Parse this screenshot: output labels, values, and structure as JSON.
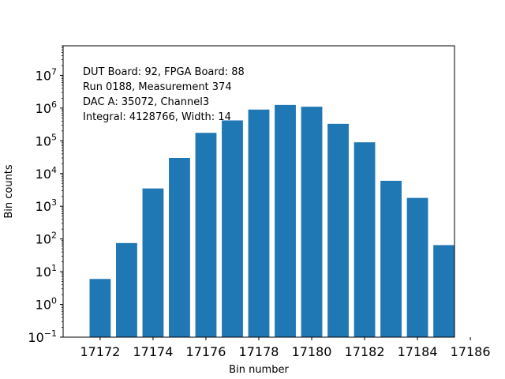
{
  "chart_data": {
    "type": "bar",
    "xlabel": "Bin number",
    "ylabel": "Bin counts",
    "yscale": "log",
    "ylim": [
      0.1,
      80000000
    ],
    "xlim": [
      17170.6,
      17185.4
    ],
    "bar_color": "#1f77b4",
    "bar_width": 0.8,
    "grid": false,
    "categories": [
      17172,
      17173,
      17174,
      17175,
      17176,
      17177,
      17178,
      17179,
      17180,
      17181,
      17182,
      17183,
      17184,
      17185
    ],
    "values": [
      6,
      75,
      3500,
      30000,
      175000,
      420000,
      900000,
      1250000,
      1100000,
      330000,
      90000,
      6000,
      1800,
      65
    ],
    "xticks": [
      {
        "value": 17172,
        "label": "17172"
      },
      {
        "value": 17174,
        "label": "17174"
      },
      {
        "value": 17176,
        "label": "17176"
      },
      {
        "value": 17178,
        "label": "17178"
      },
      {
        "value": 17180,
        "label": "17180"
      },
      {
        "value": 17182,
        "label": "17182"
      },
      {
        "value": 17184,
        "label": "17184"
      },
      {
        "value": 17186,
        "label": "17186"
      }
    ],
    "yticks": [
      {
        "exp": -1,
        "base": "10",
        "sup": "−1"
      },
      {
        "exp": 0,
        "base": "10",
        "sup": "0"
      },
      {
        "exp": 1,
        "base": "10",
        "sup": "1"
      },
      {
        "exp": 2,
        "base": "10",
        "sup": "2"
      },
      {
        "exp": 3,
        "base": "10",
        "sup": "3"
      },
      {
        "exp": 4,
        "base": "10",
        "sup": "4"
      },
      {
        "exp": 5,
        "base": "10",
        "sup": "5"
      },
      {
        "exp": 6,
        "base": "10",
        "sup": "6"
      },
      {
        "exp": 7,
        "base": "10",
        "sup": "7"
      }
    ],
    "annotations": [
      "DUT Board: 92, FPGA Board: 88",
      "Run 0188, Measurement 374",
      "DAC A: 35072, Channel3",
      "Integral: 4128766, Width: 14"
    ]
  }
}
